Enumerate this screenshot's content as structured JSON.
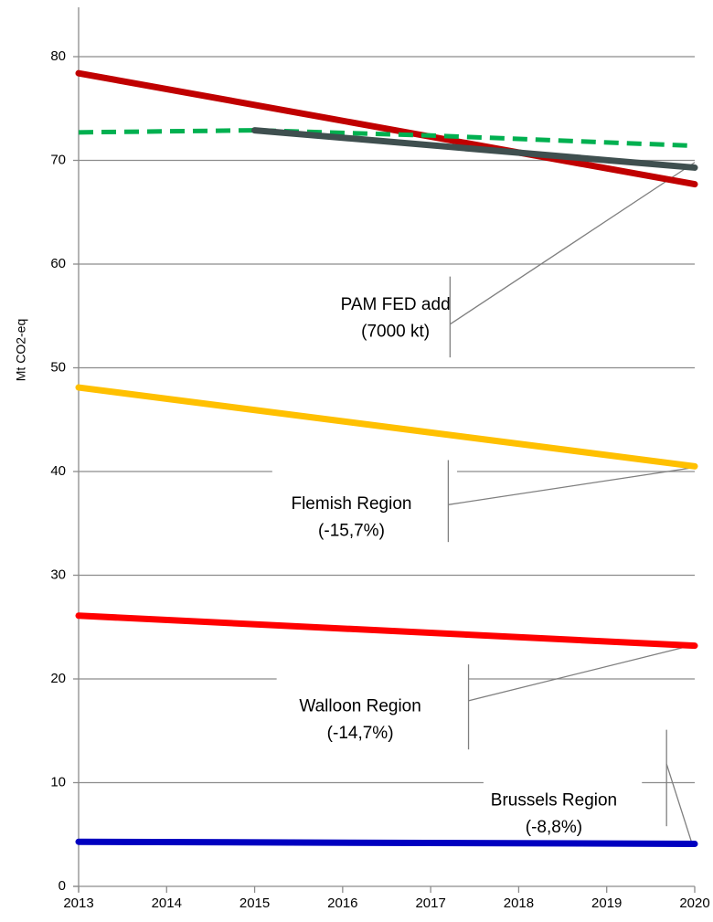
{
  "chart_data": {
    "type": "line",
    "title": "",
    "xlabel": "",
    "ylabel": "Mt CO2-eq",
    "xlim": [
      2013,
      2020
    ],
    "ylim": [
      0,
      85
    ],
    "x_ticks": [
      "2013",
      "2014",
      "2015",
      "2016",
      "2017",
      "2018",
      "2019",
      "2020"
    ],
    "y_ticks": [
      "0",
      "10",
      "20",
      "30",
      "40",
      "50",
      "60",
      "70",
      "80"
    ],
    "grid": "horizontal",
    "legend": "none",
    "series": [
      {
        "color": "#c00000",
        "style": "solid",
        "x": [
          2013,
          2020
        ],
        "y": [
          78.4,
          67.7
        ]
      },
      {
        "color": "#00b050",
        "style": "dashed",
        "x": [
          2013,
          2015,
          2017,
          2020
        ],
        "y": [
          72.7,
          72.9,
          72.4,
          71.4
        ]
      },
      {
        "color": "#3f4f4f",
        "style": "solid",
        "x": [
          2015,
          2020
        ],
        "y": [
          72.9,
          69.3
        ]
      },
      {
        "color": "#ffc000",
        "style": "solid",
        "x": [
          2013,
          2020
        ],
        "y": [
          48.1,
          40.5
        ]
      },
      {
        "color": "#ff0000",
        "style": "solid",
        "x": [
          2013,
          2020
        ],
        "y": [
          26.1,
          23.2
        ]
      },
      {
        "color": "#0000c0",
        "style": "solid",
        "x": [
          2013,
          2020
        ],
        "y": [
          4.3,
          4.1
        ]
      }
    ],
    "annotations": [
      {
        "lines": [
          "PAM FED add",
          "(7000 kt)"
        ],
        "text_x": 2016.6,
        "text_y": 55.0,
        "bar_x": 2017.22,
        "bar_y": [
          51.0,
          58.8
        ],
        "pointer_from": [
          2017.22,
          54.2
        ],
        "pointer_to": [
          2020,
          69.8
        ]
      },
      {
        "lines": [
          "Flemish Region",
          "(-15,7%)"
        ],
        "text_x": 2016.1,
        "text_y": 35.8,
        "bar_x": 2017.2,
        "bar_y": [
          33.2,
          41.1
        ],
        "pointer_from": [
          2017.2,
          36.8
        ],
        "pointer_to": [
          2020,
          40.4
        ],
        "gap_x": [
          2015.2,
          2017.3
        ]
      },
      {
        "lines": [
          "Walloon Region",
          "(-14,7%)"
        ],
        "text_x": 2016.2,
        "text_y": 16.3,
        "bar_x": 2017.43,
        "bar_y": [
          13.2,
          21.4
        ],
        "pointer_from": [
          2017.43,
          17.9
        ],
        "pointer_to": [
          2020,
          23.3
        ],
        "gap_x": [
          2015.25,
          2017.43
        ]
      },
      {
        "lines": [
          "Brussels Region",
          "(-8,8%)"
        ],
        "text_x": 2018.4,
        "text_y": 7.2,
        "bar_x": 2019.68,
        "bar_y": [
          5.8,
          15.1
        ],
        "pointer_from": [
          2019.68,
          11.8
        ],
        "pointer_to": [
          2019.97,
          4.1
        ],
        "gap_x": [
          2017.6,
          2019.4
        ]
      }
    ]
  }
}
